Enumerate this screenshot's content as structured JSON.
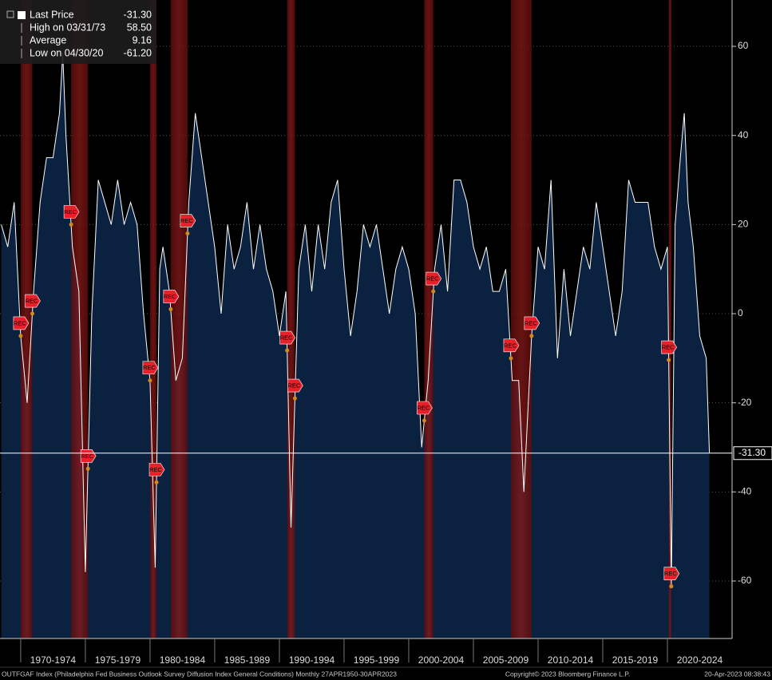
{
  "chart_data": {
    "type": "area",
    "x": [
      1968.5,
      1969.0,
      1969.5,
      1970.0,
      1970.5,
      1971.0,
      1971.5,
      1972.0,
      1972.5,
      1973.0,
      1973.25,
      1973.5,
      1974.0,
      1974.5,
      1975.0,
      1975.5,
      1976.0,
      1976.5,
      1977.0,
      1977.5,
      1978.0,
      1978.5,
      1979.0,
      1979.5,
      1980.0,
      1980.4,
      1980.75,
      1981.0,
      1981.5,
      1982.0,
      1982.5,
      1983.0,
      1983.5,
      1984.0,
      1984.5,
      1985.0,
      1985.5,
      1986.0,
      1986.5,
      1987.0,
      1987.5,
      1988.0,
      1988.5,
      1989.0,
      1989.5,
      1990.0,
      1990.5,
      1990.9,
      1991.5,
      1992.0,
      1992.5,
      1993.0,
      1993.5,
      1994.0,
      1994.5,
      1995.0,
      1995.5,
      1996.0,
      1996.5,
      1997.0,
      1997.5,
      1998.0,
      1998.5,
      1999.0,
      1999.5,
      2000.0,
      2000.5,
      2001.0,
      2001.5,
      2002.0,
      2002.5,
      2003.0,
      2003.5,
      2004.0,
      2004.5,
      2005.0,
      2005.5,
      2006.0,
      2006.5,
      2007.0,
      2007.5,
      2008.0,
      2008.5,
      2008.9,
      2009.5,
      2010.0,
      2010.5,
      2011.0,
      2011.5,
      2012.0,
      2012.5,
      2013.0,
      2013.5,
      2014.0,
      2014.5,
      2015.0,
      2015.5,
      2016.0,
      2016.5,
      2017.0,
      2017.5,
      2018.0,
      2018.5,
      2019.0,
      2019.5,
      2020.0,
      2020.3,
      2020.6,
      2021.0,
      2021.3,
      2021.6,
      2022.0,
      2022.5,
      2023.0,
      2023.25
    ],
    "series": [
      {
        "name": "Last Price",
        "color": "#ffffff",
        "values": [
          20,
          15,
          25,
          -5,
          -20,
          5,
          25,
          35,
          35,
          45,
          58.5,
          40,
          15,
          5,
          -58,
          0,
          30,
          25,
          20,
          30,
          20,
          25,
          20,
          0,
          -15,
          -57,
          10,
          15,
          5,
          -15,
          -10,
          25,
          45,
          35,
          25,
          15,
          0,
          20,
          10,
          15,
          25,
          10,
          20,
          10,
          5,
          -5,
          5,
          -48,
          10,
          20,
          5,
          20,
          10,
          25,
          30,
          10,
          -5,
          5,
          20,
          15,
          20,
          10,
          0,
          10,
          15,
          10,
          0,
          -30,
          -15,
          10,
          20,
          5,
          30,
          30,
          25,
          15,
          10,
          15,
          5,
          5,
          10,
          -15,
          -15,
          -40,
          -5,
          15,
          10,
          30,
          -10,
          10,
          -5,
          5,
          15,
          10,
          25,
          15,
          5,
          -5,
          5,
          30,
          25,
          25,
          25,
          15,
          10,
          15,
          -61.2,
          20,
          35,
          45,
          25,
          15,
          -5,
          -10,
          -31.3
        ]
      }
    ],
    "recessions": [
      {
        "start": 1970.0,
        "end": 1970.9
      },
      {
        "start": 1973.9,
        "end": 1975.2
      },
      {
        "start": 1980.0,
        "end": 1980.5
      },
      {
        "start": 1981.6,
        "end": 1982.9
      },
      {
        "start": 1990.6,
        "end": 1991.2
      },
      {
        "start": 2001.2,
        "end": 2001.9
      },
      {
        "start": 2007.9,
        "end": 2009.5
      },
      {
        "start": 2020.1,
        "end": 2020.3
      }
    ],
    "recession_label": "REC",
    "legend": [
      {
        "name": "Last Price",
        "value": -31.3,
        "label": "-31.30"
      },
      {
        "name": "High on 03/31/73",
        "value": 58.5,
        "label": "58.50"
      },
      {
        "name": "Average",
        "value": 9.16,
        "label": "9.16"
      },
      {
        "name": "Low on 04/30/20",
        "value": -61.2,
        "label": "-61.20"
      }
    ],
    "last_price": {
      "value": -31.3,
      "label": "-31.30"
    },
    "xlim": [
      1968.4,
      2025.0
    ],
    "xticks": [
      {
        "value": 1970,
        "label": "1970-1974"
      },
      {
        "value": 1975,
        "label": "1975-1979"
      },
      {
        "value": 1980,
        "label": "1980-1984"
      },
      {
        "value": 1985,
        "label": "1985-1989"
      },
      {
        "value": 1990,
        "label": "1990-1994"
      },
      {
        "value": 1995,
        "label": "1995-1999"
      },
      {
        "value": 2000,
        "label": "2000-2004"
      },
      {
        "value": 2005,
        "label": "2005-2009"
      },
      {
        "value": 2010,
        "label": "2010-2014"
      },
      {
        "value": 2015,
        "label": "2015-2019"
      },
      {
        "value": 2020,
        "label": "2020-2024"
      }
    ],
    "ylim": [
      -72.9,
      70.4
    ],
    "yticks": [
      -60,
      -40,
      -20,
      0,
      20,
      40,
      60
    ],
    "grid": true,
    "footer_left": "OUTFGAF Index (Philadelphia Fed Business Outlook Survey Diffusion Index General Conditions)  Monthly 27APR1950-30APR2023",
    "footer_center": "Copyright© 2023 Bloomberg Finance L.P.",
    "footer_right": "20-Apr-2023 08:38:43"
  }
}
